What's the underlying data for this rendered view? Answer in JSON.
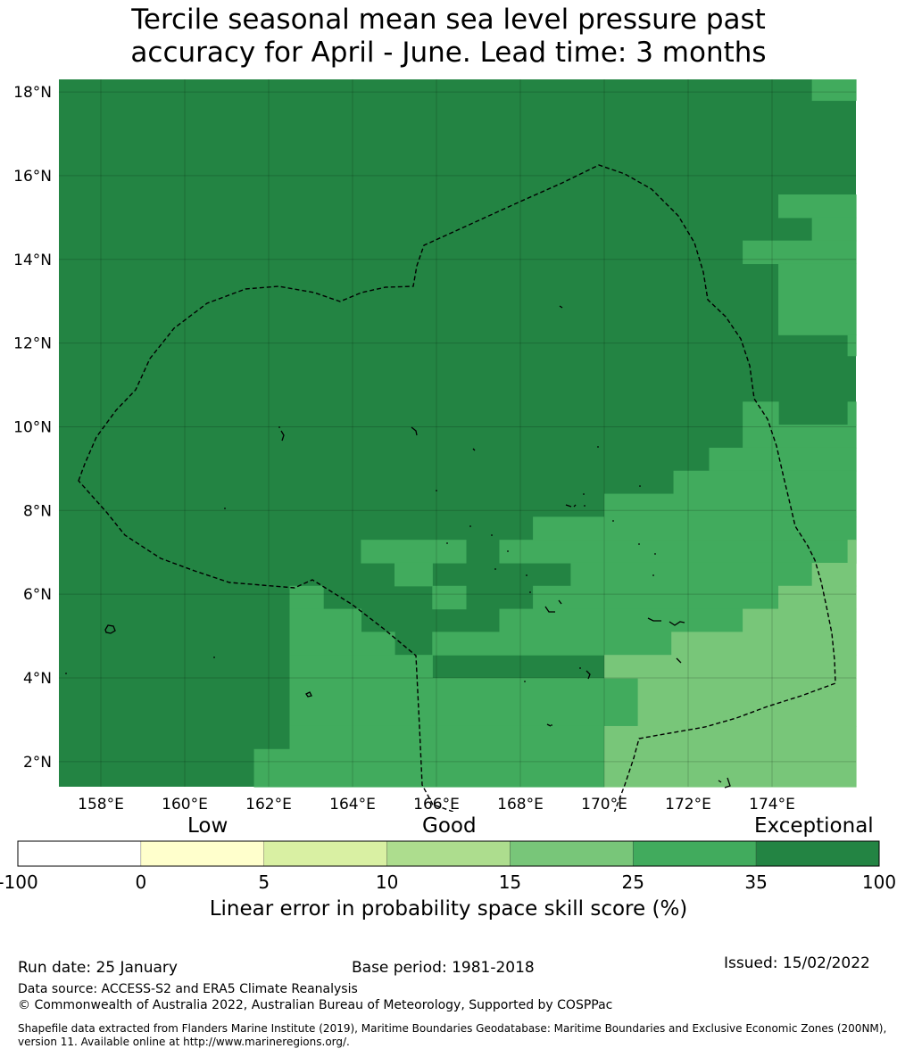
{
  "title": {
    "line1": "Tercile seasonal mean sea level pressure past",
    "line2": "accuracy for April - June. Lead time: 3 months"
  },
  "map": {
    "lat_ticks": [
      "18°N",
      "16°N",
      "14°N",
      "12°N",
      "10°N",
      "8°N",
      "6°N",
      "4°N",
      "2°N"
    ],
    "lon_ticks": [
      "158°E",
      "160°E",
      "162°E",
      "164°E",
      "166°E",
      "168°E",
      "170°E",
      "172°E",
      "174°E"
    ],
    "lat_range": [
      1.4,
      18.3
    ],
    "lon_range": [
      157.0,
      176.0
    ]
  },
  "colorbar": {
    "categories": [
      "Low",
      "Good",
      "Exceptional"
    ],
    "tick_labels": [
      "-100",
      "0",
      "5",
      "10",
      "15",
      "25",
      "35",
      "100"
    ],
    "colors": [
      "#ffffff",
      "#ffffcc",
      "#d9f0a3",
      "#addd8e",
      "#78c679",
      "#41ab5d",
      "#238443"
    ],
    "title": "Linear error in probability space skill score (%)"
  },
  "footer": {
    "run_date": "Run date: 25 January",
    "base_period": "Base period: 1981-2018",
    "issued": "Issued: 15/02/2022",
    "data_source": "Data source: ACCESS-S2 and ERA5 Climate Reanalysis",
    "copyright": "© Commonwealth of Australia 2022, Australian Bureau of Meteorology, Supported by COSPPac",
    "shapefile": "Shapefile data extracted from Flanders Marine Institute (2019), Maritime Boundaries Geodatabase: Maritime Boundaries and Exclusive Economic Zones (200NM), version 11. Available online at http://www.marineregions.org/."
  }
}
